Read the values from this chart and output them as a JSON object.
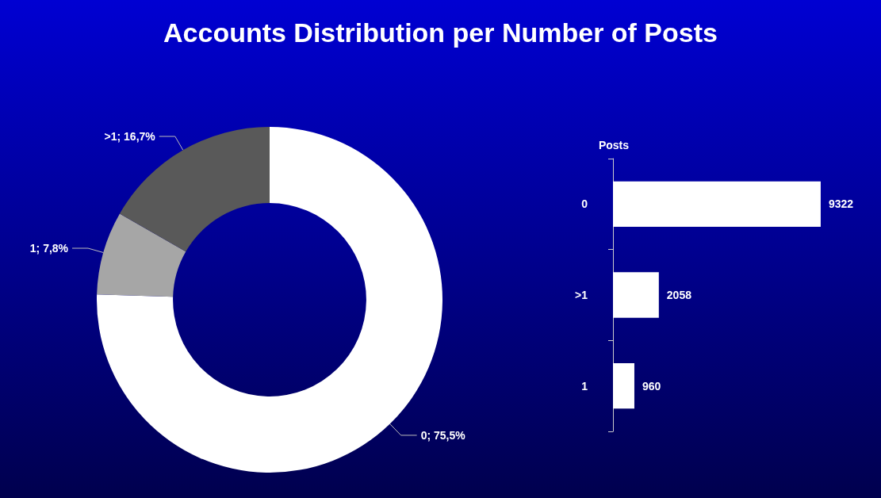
{
  "chart_data": [
    {
      "type": "donut",
      "title": "Accounts Distribution per Number of Posts",
      "categories": [
        "0",
        "1",
        ">1"
      ],
      "values": [
        75.5,
        7.8,
        16.7
      ],
      "colors": [
        "#ffffff",
        "#a6a6a6",
        "#595959"
      ],
      "value_labels": [
        "75,5%",
        "7,8%",
        "16,7%"
      ],
      "legend": false
    },
    {
      "type": "bar",
      "orientation": "horizontal",
      "ylabel": "Posts",
      "categories": [
        "0",
        ">1",
        "1"
      ],
      "values": [
        9322,
        2058,
        960
      ],
      "color": "#ffffff",
      "data_labels": true,
      "legend": false
    }
  ]
}
